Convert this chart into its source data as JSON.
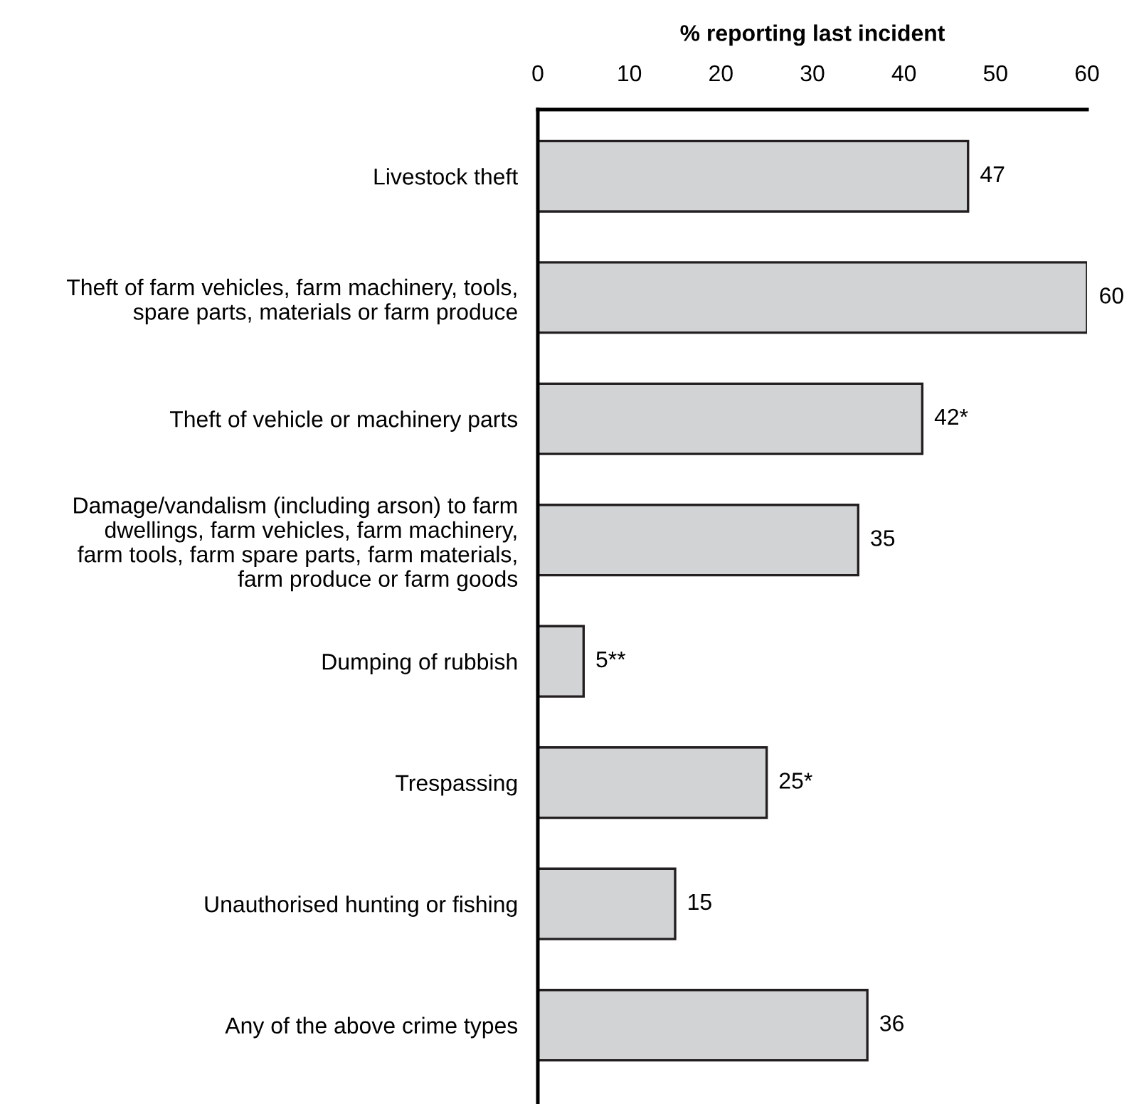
{
  "chart_data": {
    "type": "bar",
    "orientation": "horizontal",
    "xlabel": "% reporting last incident",
    "categories": [
      "Livestock theft",
      "Theft of farm vehicles, farm machinery, tools,\nspare parts, materials or farm produce",
      "Theft of vehicle or machinery parts",
      "Damage/vandalism (including arson) to farm\ndwellings, farm vehicles, farm machinery,\nfarm tools, farm spare parts, farm materials,\nfarm produce or farm goods",
      "Dumping of rubbish",
      "Trespassing",
      "Unauthorised hunting or fishing",
      "Any of the above crime types"
    ],
    "values": [
      47,
      60,
      42,
      35,
      5,
      25,
      15,
      36
    ],
    "value_labels": [
      "47",
      "60",
      "42*",
      "35",
      "5**",
      "25*",
      "15",
      "36"
    ],
    "color": "#d1d3d4",
    "xlim": [
      0,
      60
    ],
    "xticks": [
      0,
      10,
      20,
      30,
      40,
      50,
      60
    ],
    "grid": false
  }
}
